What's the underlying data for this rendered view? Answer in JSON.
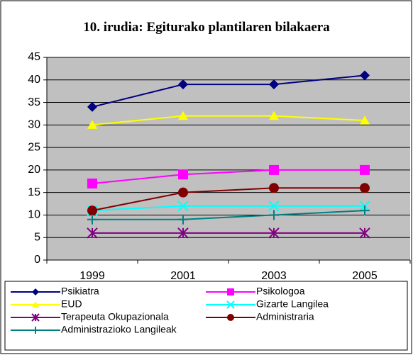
{
  "chart_data": {
    "type": "line",
    "title": "10. irudia: Egiturako plantilaren bilakaera",
    "categories": [
      "1999",
      "2001",
      "2003",
      "2005"
    ],
    "ylim": [
      0,
      45
    ],
    "yticks": [
      0,
      5,
      10,
      15,
      20,
      25,
      30,
      35,
      40,
      45
    ],
    "grid": true,
    "series": [
      {
        "name": "Psikiatra",
        "color": "#000080",
        "marker": "diamond",
        "values": [
          34,
          39,
          39,
          41
        ]
      },
      {
        "name": "Psikologoa",
        "color": "#ff00ff",
        "marker": "square",
        "values": [
          17,
          19,
          20,
          20
        ]
      },
      {
        "name": "EUD",
        "color": "#ffff00",
        "marker": "triangle",
        "values": [
          30,
          32,
          32,
          31
        ]
      },
      {
        "name": "Gizarte Langilea",
        "color": "#00ffff",
        "marker": "x",
        "values": [
          11,
          12,
          12,
          12
        ]
      },
      {
        "name": "Terapeuta Okupazionala",
        "color": "#800080",
        "marker": "asterisk",
        "values": [
          6,
          6,
          6,
          6
        ]
      },
      {
        "name": "Administraria",
        "color": "#800000",
        "marker": "circle",
        "values": [
          11,
          15,
          16,
          16
        ]
      },
      {
        "name": "Administrazioko Langileak",
        "color": "#008080",
        "marker": "plus",
        "values": [
          9,
          9,
          10,
          11
        ]
      }
    ]
  }
}
